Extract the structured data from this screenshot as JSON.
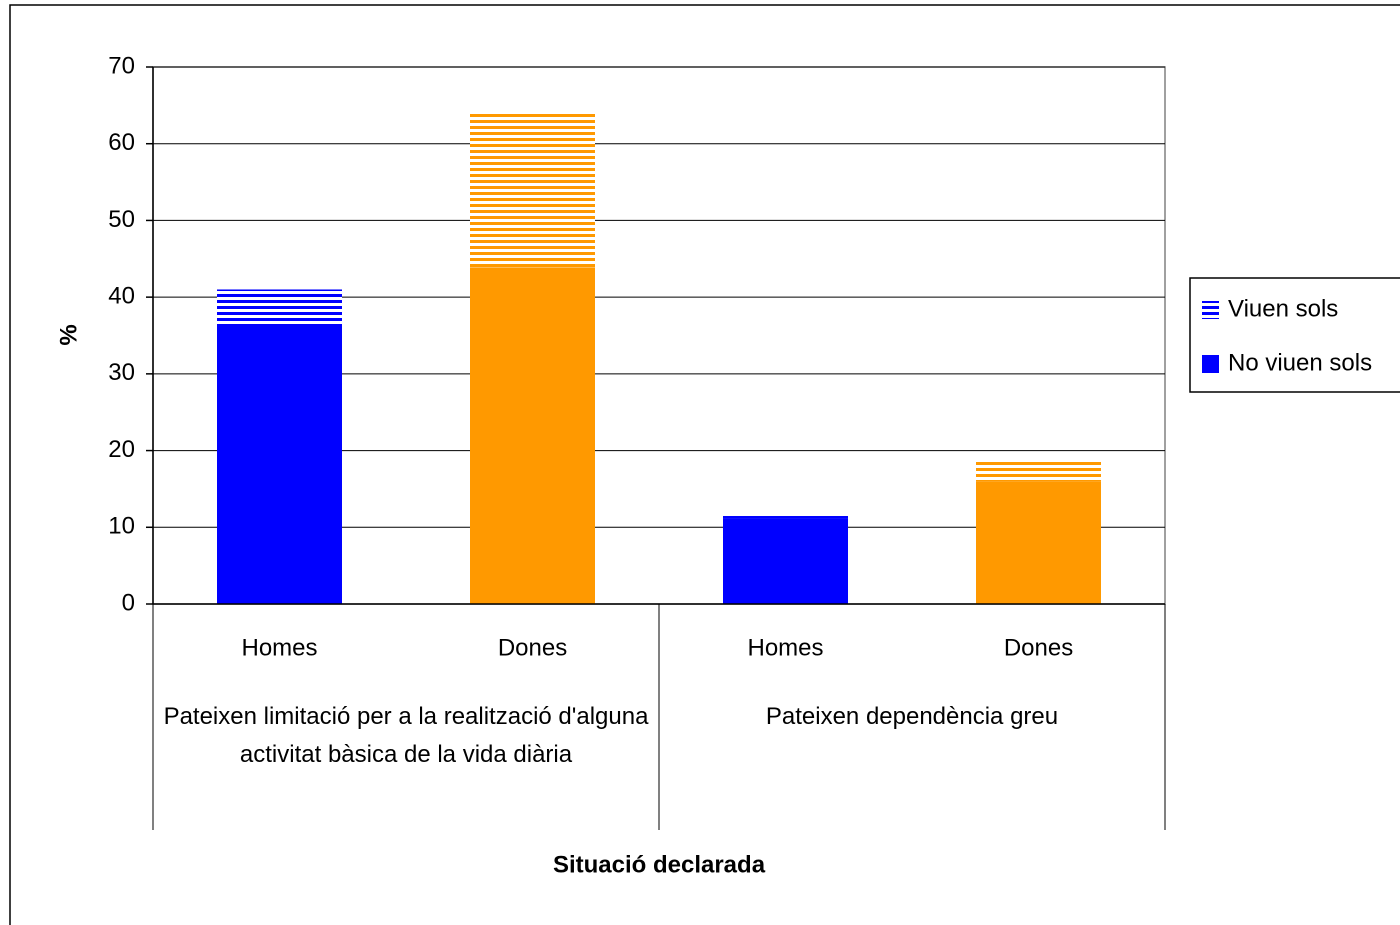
{
  "chart_data": {
    "type": "stacked_bar",
    "categories": [
      "Homes",
      "Dones",
      "Homes",
      "Dones"
    ],
    "groups": [
      {
        "label": "Pateixen limitació per a la realització d'alguna activitat bàsica de la vida diària",
        "span": 2
      },
      {
        "label": "Pateixen dependència greu",
        "span": 2
      }
    ],
    "series": [
      {
        "name": "No viuen sols",
        "color": "#0000ff",
        "pattern": "solid",
        "values": [
          36.5,
          43.9,
          11.2,
          16.0
        ]
      },
      {
        "name": "Viuen sols",
        "color": "#0000ff",
        "pattern": "stripes",
        "values": [
          4.5,
          20.2,
          0.5,
          2.9
        ]
      }
    ],
    "category_colors": [
      "#0000ff",
      "#ff9900",
      "#0000ff",
      "#ff9900"
    ],
    "ylabel": "%",
    "xlabel": "Situació declarada",
    "ylim": [
      0,
      70
    ],
    "yticks": [
      0,
      10,
      20,
      30,
      40,
      50,
      60,
      70
    ],
    "grid": true,
    "legend": "right"
  }
}
